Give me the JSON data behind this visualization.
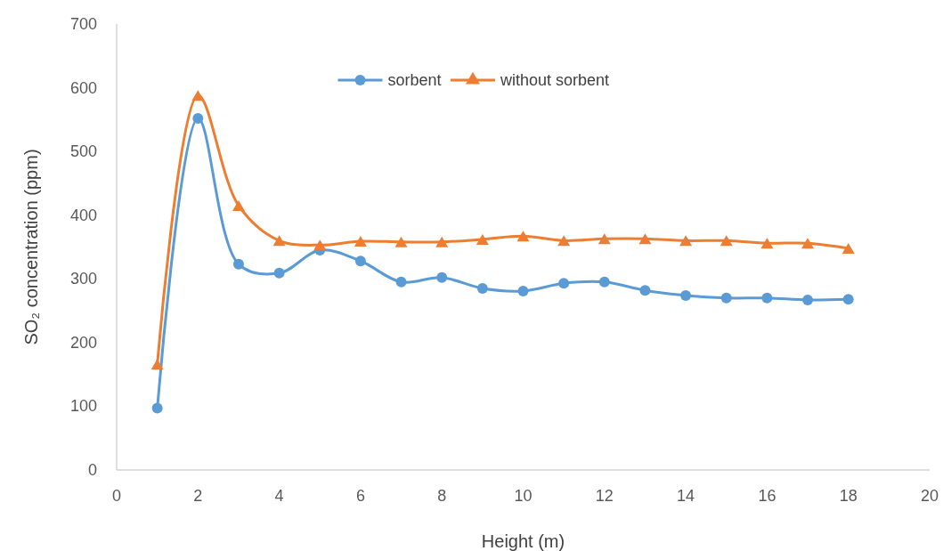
{
  "chart_data": {
    "type": "line",
    "xlabel": "Height (m)",
    "ylabel": "SO₂ concentration (ppm)",
    "x": [
      1,
      2,
      3,
      4,
      5,
      6,
      7,
      8,
      9,
      10,
      11,
      12,
      13,
      14,
      15,
      16,
      17,
      18
    ],
    "series": [
      {
        "name": "sorbent",
        "color": "#5b9bd5",
        "marker": "circle",
        "values": [
          97,
          552,
          323,
          309,
          345,
          328,
          295,
          302,
          285,
          281,
          293,
          295,
          282,
          274,
          270,
          270,
          267,
          268
        ]
      },
      {
        "name": "without sorbent",
        "color": "#ed7d31",
        "marker": "triangle",
        "values": [
          166,
          588,
          415,
          360,
          353,
          359,
          358,
          358,
          362,
          367,
          360,
          363,
          363,
          360,
          360,
          356,
          356,
          348
        ]
      }
    ],
    "xlim": [
      0,
      20
    ],
    "xticks": [
      0,
      2,
      4,
      6,
      8,
      10,
      12,
      14,
      16,
      18,
      20
    ],
    "ylim": [
      0,
      700
    ],
    "yticks": [
      0,
      100,
      200,
      300,
      400,
      500,
      600,
      700
    ],
    "legend": "top",
    "grid": false
  }
}
